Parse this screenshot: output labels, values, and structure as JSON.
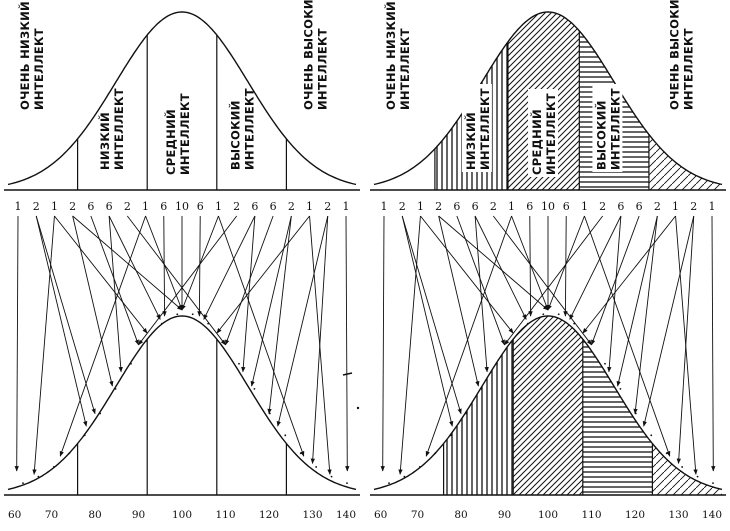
{
  "panels": [
    {
      "name": "left",
      "hatched": false,
      "categories": [
        {
          "label_1": "ОЧЕНЬ НИЗКИЙ",
          "label_2": "ИНТЕЛЛЕКТ"
        },
        {
          "label_1": "НИЗКИЙ",
          "label_2": "ИНТЕЛЛЕКТ"
        },
        {
          "label_1": "СРЕДНИЙ",
          "label_2": "ИНТЕЛЛЕКТ"
        },
        {
          "label_1": "ВЫСОКИЙ",
          "label_2": "ИНТЕЛЛЕКТ"
        },
        {
          "label_1": "ОЧЕНЬ ВЫСОКИЙ",
          "label_2": "ИНТЕЛЛЕКТ"
        }
      ]
    },
    {
      "name": "right",
      "hatched": true,
      "categories": [
        {
          "label_1": "ОЧЕНЬ НИЗКИЙ",
          "label_2": "ИНТЕЛЛЕКТ"
        },
        {
          "label_1": "НИЗКИЙ",
          "label_2": "ИНТЕЛЛЕКТ"
        },
        {
          "label_1": "СРЕДНИЙ",
          "label_2": "ИНТЕЛЛЕКТ"
        },
        {
          "label_1": "ВЫСОКИЙ",
          "label_2": "ИНТЕЛЛЕКТ"
        },
        {
          "label_1": "ОЧЕНЬ ВЫСОКИЙ",
          "label_2": "ИНТЕЛЛЕКТ"
        }
      ]
    }
  ],
  "weights": [
    "1",
    "2",
    "1",
    "2",
    "6",
    "6",
    "2",
    "1",
    "6",
    "10",
    "6",
    "1",
    "2",
    "6",
    "6",
    "2",
    "1",
    "2",
    "1"
  ],
  "x_ticks": [
    "60",
    "70",
    "80",
    "90",
    "100",
    "110",
    "120",
    "130",
    "140"
  ],
  "x_range": [
    60,
    140
  ]
}
